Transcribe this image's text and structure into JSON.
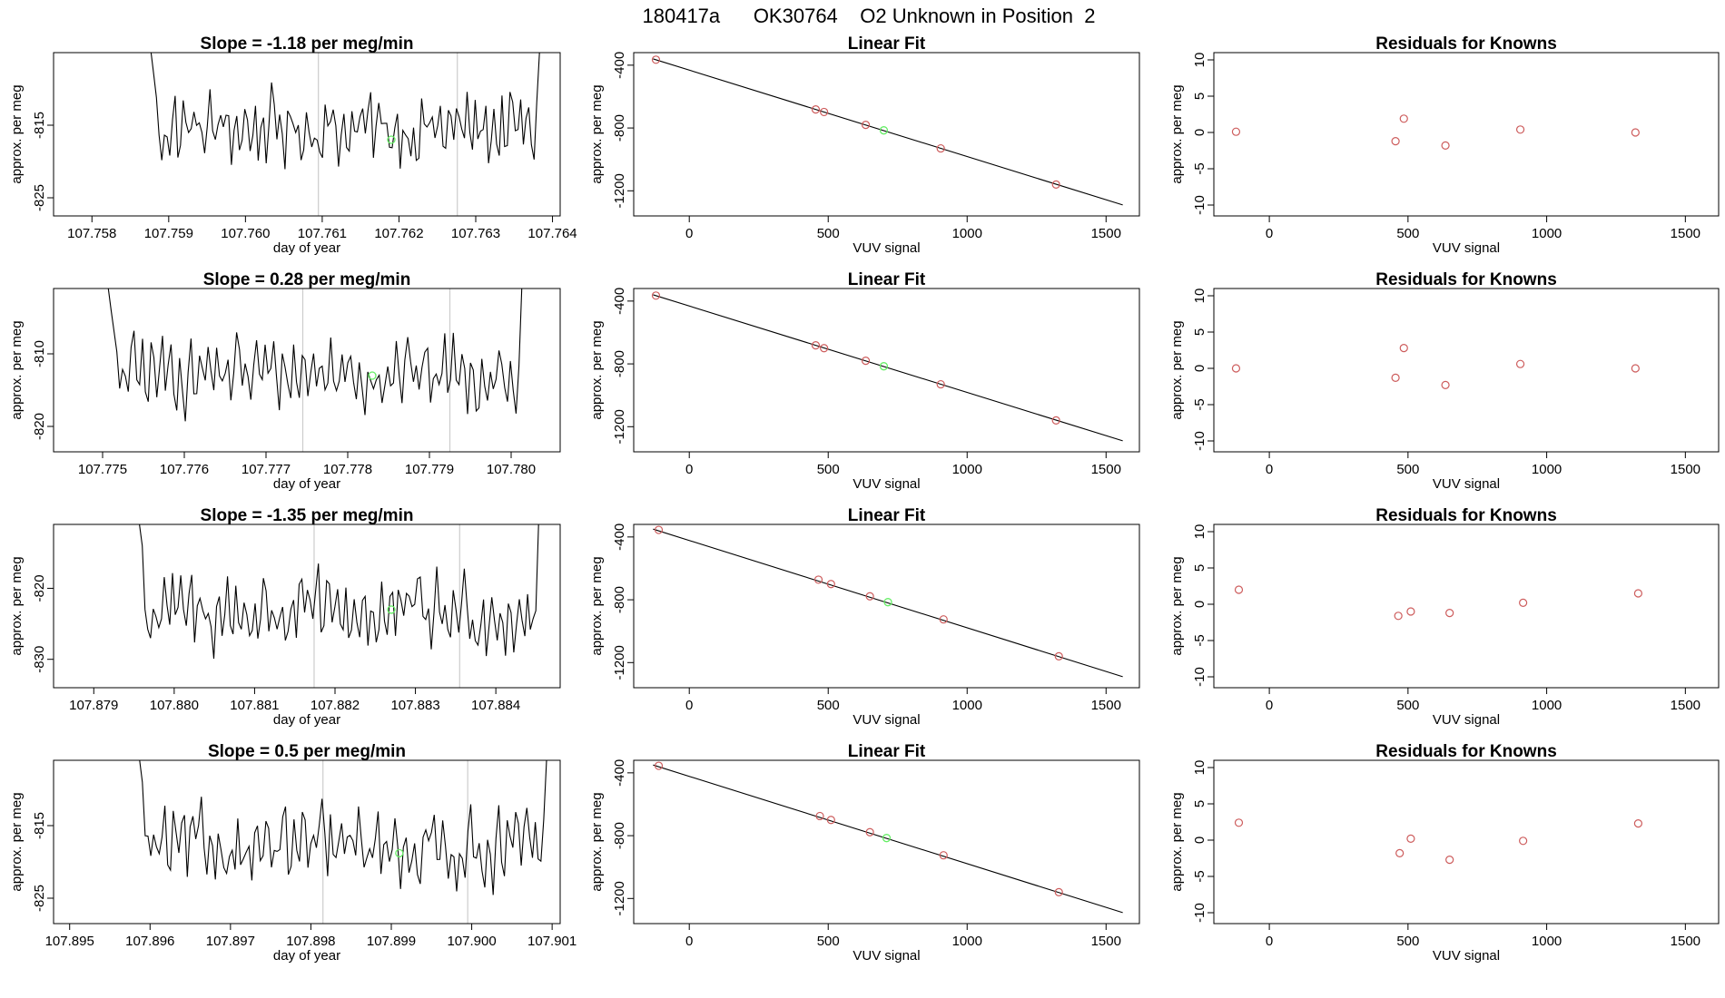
{
  "figure": {
    "title": "180417a      OK30764    O2 Unknown in Position  2"
  },
  "colors": {
    "known": "#cd5c5c",
    "unknown": "#66ee66",
    "line": "#000000",
    "grid": "#cccccc"
  },
  "chart_data": [
    {
      "type": "line",
      "row": 0,
      "title": "Slope =  -1.18  per meg/min",
      "xlabel": "day of year",
      "ylabel": "approx. per meg",
      "xlim": [
        107.7575,
        107.7641
      ],
      "ylim": [
        -827.5,
        -805
      ],
      "xticks": [
        "107.758",
        "107.759",
        "107.760",
        "107.761",
        "107.762",
        "107.763",
        "107.764"
      ],
      "yticks": [
        "-815",
        "-825"
      ],
      "vlines": [
        107.76095,
        107.76276
      ],
      "series_x_start": 107.7587,
      "series_x_end": 107.7639,
      "series_mean": -815.5,
      "series_amp": 3.0,
      "unknown_point": [
        107.7619,
        -817.0
      ]
    },
    {
      "type": "line",
      "row": 1,
      "title": "Slope =  0.28  per meg/min",
      "xlabel": "day of year",
      "ylabel": "approx. per meg",
      "xlim": [
        107.7744,
        107.7806
      ],
      "ylim": [
        -823.5,
        -801
      ],
      "xticks": [
        "107.775",
        "107.776",
        "107.777",
        "107.778",
        "107.779",
        "107.780"
      ],
      "yticks": [
        "-810",
        "-820"
      ],
      "vlines": [
        107.77745,
        107.77925
      ],
      "series_x_start": 107.775,
      "series_x_end": 107.7802,
      "series_mean": -812.5,
      "series_amp": 3.0,
      "unknown_point": [
        107.7783,
        -813.0
      ]
    },
    {
      "type": "line",
      "row": 2,
      "title": "Slope =  -1.35  per meg/min",
      "xlabel": "day of year",
      "ylabel": "approx. per meg",
      "xlim": [
        107.8785,
        107.8848
      ],
      "ylim": [
        -834,
        -811
      ],
      "xticks": [
        "107.879",
        "107.880",
        "107.881",
        "107.882",
        "107.883",
        "107.884"
      ],
      "yticks": [
        "-820",
        "-830"
      ],
      "vlines": [
        107.88174,
        107.88355
      ],
      "series_x_start": 107.8795,
      "series_x_end": 107.8846,
      "series_mean": -823.5,
      "series_amp": 3.3,
      "unknown_point": [
        107.8827,
        -823.0
      ]
    },
    {
      "type": "line",
      "row": 3,
      "title": "Slope =  0.5  per meg/min",
      "xlabel": "day of year",
      "ylabel": "approx. per meg",
      "xlim": [
        107.8948,
        107.9011
      ],
      "ylim": [
        -828.5,
        -806
      ],
      "xticks": [
        "107.895",
        "107.896",
        "107.897",
        "107.898",
        "107.899",
        "107.900",
        "107.901"
      ],
      "yticks": [
        "-815",
        "-825"
      ],
      "vlines": [
        107.89815,
        107.89995
      ],
      "series_x_start": 107.8958,
      "series_x_end": 107.901,
      "series_mean": -818.0,
      "series_amp": 3.0,
      "unknown_point": [
        107.8991,
        -818.8
      ]
    },
    {
      "type": "scatter",
      "row": 0,
      "title": "Linear Fit",
      "xlabel": "VUV signal",
      "ylabel": "approx. per meg",
      "xlim": [
        -200,
        1620
      ],
      "ylim": [
        -1360,
        -320
      ],
      "xticks": [
        0,
        500,
        1000,
        1500
      ],
      "yticks": [
        -400,
        -800,
        -1200
      ],
      "fit_line": [
        [
          -130,
          -360
        ],
        [
          1560,
          -1290
        ]
      ],
      "knowns": [
        [
          -120,
          -365
        ],
        [
          455,
          -682
        ],
        [
          485,
          -698
        ],
        [
          635,
          -780
        ],
        [
          905,
          -930
        ],
        [
          1320,
          -1160
        ]
      ],
      "unknown": [
        [
          700,
          -815
        ]
      ]
    },
    {
      "type": "scatter",
      "row": 1,
      "title": "Linear Fit",
      "xlabel": "VUV signal",
      "ylabel": "approx. per meg",
      "xlim": [
        -200,
        1620
      ],
      "ylim": [
        -1360,
        -320
      ],
      "xticks": [
        0,
        500,
        1000,
        1500
      ],
      "yticks": [
        -400,
        -800,
        -1200
      ],
      "fit_line": [
        [
          -130,
          -360
        ],
        [
          1560,
          -1290
        ]
      ],
      "knowns": [
        [
          -120,
          -365
        ],
        [
          455,
          -682
        ],
        [
          485,
          -700
        ],
        [
          635,
          -780
        ],
        [
          905,
          -930
        ],
        [
          1320,
          -1160
        ]
      ],
      "unknown": [
        [
          700,
          -815
        ]
      ]
    },
    {
      "type": "scatter",
      "row": 2,
      "title": "Linear Fit",
      "xlabel": "VUV signal",
      "ylabel": "approx. per meg",
      "xlim": [
        -200,
        1620
      ],
      "ylim": [
        -1360,
        -320
      ],
      "xticks": [
        0,
        500,
        1000,
        1500
      ],
      "yticks": [
        -400,
        -800,
        -1200
      ],
      "fit_line": [
        [
          -130,
          -350
        ],
        [
          1560,
          -1290
        ]
      ],
      "knowns": [
        [
          -110,
          -355
        ],
        [
          465,
          -672
        ],
        [
          510,
          -700
        ],
        [
          650,
          -778
        ],
        [
          915,
          -925
        ],
        [
          1330,
          -1160
        ]
      ],
      "unknown": [
        [
          715,
          -815
        ]
      ]
    },
    {
      "type": "scatter",
      "row": 3,
      "title": "Linear Fit",
      "xlabel": "VUV signal",
      "ylabel": "approx. per meg",
      "xlim": [
        -200,
        1620
      ],
      "ylim": [
        -1360,
        -320
      ],
      "xticks": [
        0,
        500,
        1000,
        1500
      ],
      "yticks": [
        -400,
        -800,
        -1200
      ],
      "fit_line": [
        [
          -130,
          -350
        ],
        [
          1560,
          -1290
        ]
      ],
      "knowns": [
        [
          -110,
          -355
        ],
        [
          470,
          -675
        ],
        [
          510,
          -700
        ],
        [
          650,
          -778
        ],
        [
          915,
          -925
        ],
        [
          1330,
          -1160
        ]
      ],
      "unknown": [
        [
          710,
          -815
        ]
      ]
    },
    {
      "type": "scatter",
      "row": 0,
      "title": "Residuals for Knowns",
      "xlabel": "VUV signal",
      "ylabel": "approx. per meg",
      "xlim": [
        -200,
        1620
      ],
      "ylim": [
        -11.5,
        11
      ],
      "xticks": [
        0,
        500,
        1000,
        1500
      ],
      "yticks": [
        10,
        5,
        0,
        -5,
        -10
      ],
      "residuals": [
        [
          -120,
          0.1
        ],
        [
          455,
          -1.2
        ],
        [
          485,
          1.9
        ],
        [
          635,
          -1.8
        ],
        [
          905,
          0.4
        ],
        [
          1320,
          0.0
        ]
      ]
    },
    {
      "type": "scatter",
      "row": 1,
      "title": "Residuals for Knowns",
      "xlabel": "VUV signal",
      "ylabel": "approx. per meg",
      "xlim": [
        -200,
        1620
      ],
      "ylim": [
        -11.5,
        11
      ],
      "xticks": [
        0,
        500,
        1000,
        1500
      ],
      "yticks": [
        10,
        5,
        0,
        -5,
        -10
      ],
      "residuals": [
        [
          -120,
          0.0
        ],
        [
          455,
          -1.3
        ],
        [
          485,
          2.8
        ],
        [
          635,
          -2.3
        ],
        [
          905,
          0.6
        ],
        [
          1320,
          0.0
        ]
      ]
    },
    {
      "type": "scatter",
      "row": 2,
      "title": "Residuals for Knowns",
      "xlabel": "VUV signal",
      "ylabel": "approx. per meg",
      "xlim": [
        -200,
        1620
      ],
      "ylim": [
        -11.5,
        11
      ],
      "xticks": [
        0,
        500,
        1000,
        1500
      ],
      "yticks": [
        10,
        5,
        0,
        -5,
        -10
      ],
      "residuals": [
        [
          -110,
          2.0
        ],
        [
          465,
          -1.6
        ],
        [
          510,
          -1.0
        ],
        [
          650,
          -1.2
        ],
        [
          915,
          0.2
        ],
        [
          1330,
          1.5
        ]
      ]
    },
    {
      "type": "scatter",
      "row": 3,
      "title": "Residuals for Knowns",
      "xlabel": "VUV signal",
      "ylabel": "approx. per meg",
      "xlim": [
        -200,
        1620
      ],
      "ylim": [
        -11.5,
        11
      ],
      "xticks": [
        0,
        500,
        1000,
        1500
      ],
      "yticks": [
        10,
        5,
        0,
        -5,
        -10
      ],
      "residuals": [
        [
          -110,
          2.4
        ],
        [
          470,
          -1.8
        ],
        [
          510,
          0.2
        ],
        [
          650,
          -2.7
        ],
        [
          915,
          -0.1
        ],
        [
          1330,
          2.3
        ]
      ]
    }
  ]
}
